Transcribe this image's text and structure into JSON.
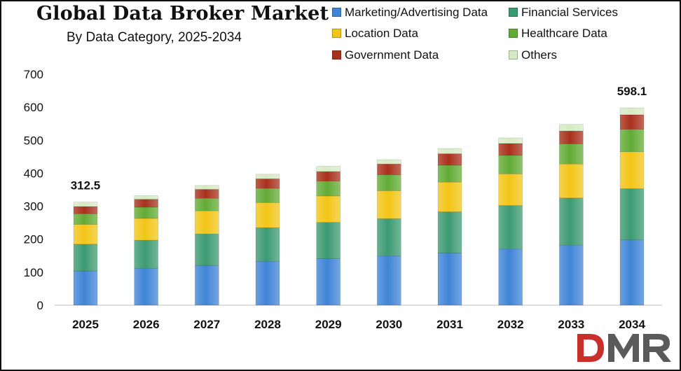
{
  "title": "Global Data Broker Market",
  "subtitle": "By Data Category, 2025-2034",
  "colors": {
    "Marketing/Advertising Data": "#3f84d6",
    "Financial Services": "#3c9a72",
    "Location Data": "#f2c516",
    "Healthcare Data": "#62ab35",
    "Government Data": "#a9301c",
    "Others": "#d6ebc4"
  },
  "logo": {
    "text": "DMR"
  },
  "chart_data": {
    "type": "bar",
    "stacked": true,
    "categories": [
      "2025",
      "2026",
      "2027",
      "2028",
      "2029",
      "2030",
      "2031",
      "2032",
      "2033",
      "2034"
    ],
    "ylim": [
      0,
      700
    ],
    "yticks": [
      0,
      100,
      200,
      300,
      400,
      500,
      600,
      700
    ],
    "grid": false,
    "legend_position": "top-right",
    "series": [
      {
        "name": "Marketing/Advertising Data",
        "values": [
          104,
          111,
          121,
          133,
          141,
          149,
          158,
          170,
          182,
          198
        ]
      },
      {
        "name": "Financial Services",
        "values": [
          81,
          86,
          95,
          102,
          110,
          113,
          125,
          132,
          143,
          155
        ]
      },
      {
        "name": "Location Data",
        "values": [
          60,
          66,
          70,
          76,
          80,
          85,
          90,
          96,
          103,
          112
        ]
      },
      {
        "name": "Healthcare Data",
        "values": [
          32,
          34,
          38,
          43,
          45,
          48,
          51,
          56,
          61,
          68
        ]
      },
      {
        "name": "Government Data",
        "values": [
          22,
          24,
          27,
          29,
          29,
          33,
          35,
          36,
          39,
          44
        ]
      },
      {
        "name": "Others",
        "values": [
          13.5,
          11,
          12,
          14,
          16,
          13,
          16,
          17,
          20,
          21.1
        ]
      }
    ],
    "annotations": [
      {
        "category": "2025",
        "text": "312.5"
      },
      {
        "category": "2034",
        "text": "598.1"
      }
    ]
  }
}
